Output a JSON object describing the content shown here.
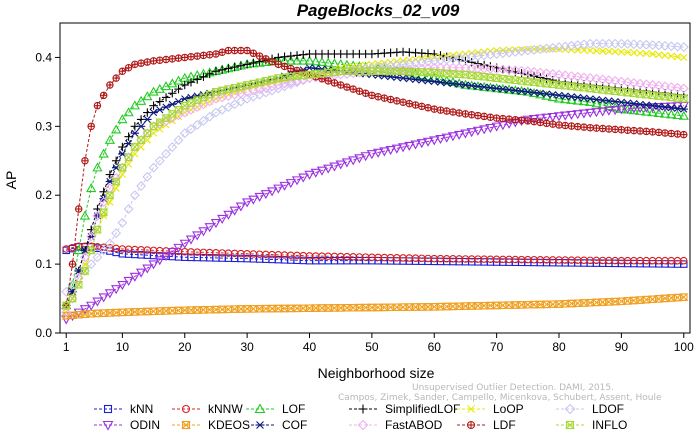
{
  "chart_data": {
    "type": "line",
    "title": "PageBlocks_02_v09",
    "xlabel": "Neighborhood size",
    "ylabel": "AP",
    "xlim": [
      0,
      101
    ],
    "ylim": [
      0,
      0.45
    ],
    "xticks": [
      1,
      10,
      20,
      30,
      40,
      50,
      60,
      70,
      80,
      90,
      100
    ],
    "yticks": [
      0.0,
      0.1,
      0.2,
      0.3,
      0.4
    ],
    "ytick_labels": [
      "0.0",
      "0.1",
      "0.2",
      "0.3",
      "0.4"
    ],
    "grid": false,
    "legend_position": "bottom",
    "series": [
      {
        "name": "kNN",
        "color": "#1f1fd6",
        "marker": "square",
        "x": [
          1,
          3,
          5,
          10,
          20,
          30,
          40,
          50,
          60,
          70,
          80,
          90,
          100
        ],
        "values": [
          0.12,
          0.125,
          0.125,
          0.115,
          0.11,
          0.108,
          0.105,
          0.105,
          0.104,
          0.103,
          0.102,
          0.101,
          0.1
        ]
      },
      {
        "name": "kNNW",
        "color": "#d62020",
        "marker": "circle",
        "x": [
          1,
          3,
          5,
          10,
          20,
          30,
          40,
          50,
          60,
          70,
          80,
          90,
          100
        ],
        "values": [
          0.122,
          0.126,
          0.126,
          0.122,
          0.118,
          0.115,
          0.112,
          0.11,
          0.108,
          0.107,
          0.106,
          0.105,
          0.105
        ]
      },
      {
        "name": "LOF",
        "color": "#22cc22",
        "marker": "triangle-up",
        "x": [
          1,
          2,
          3,
          4,
          5,
          6,
          8,
          10,
          12,
          15,
          20,
          25,
          30,
          35,
          40,
          45,
          50,
          55,
          60,
          65,
          70,
          75,
          80,
          85,
          90,
          95,
          100
        ],
        "values": [
          0.04,
          0.07,
          0.12,
          0.17,
          0.21,
          0.24,
          0.28,
          0.31,
          0.33,
          0.35,
          0.37,
          0.38,
          0.39,
          0.395,
          0.395,
          0.39,
          0.385,
          0.38,
          0.37,
          0.36,
          0.355,
          0.35,
          0.34,
          0.335,
          0.325,
          0.32,
          0.315
        ]
      },
      {
        "name": "SimplifiedLOF",
        "color": "#000000",
        "marker": "plus",
        "x": [
          1,
          2,
          3,
          4,
          5,
          6,
          8,
          10,
          12,
          15,
          20,
          25,
          30,
          35,
          40,
          45,
          50,
          55,
          60,
          65,
          70,
          75,
          80,
          85,
          90,
          95,
          100
        ],
        "values": [
          0.04,
          0.06,
          0.09,
          0.12,
          0.15,
          0.18,
          0.23,
          0.27,
          0.3,
          0.33,
          0.36,
          0.38,
          0.39,
          0.4,
          0.405,
          0.405,
          0.405,
          0.408,
          0.405,
          0.395,
          0.385,
          0.375,
          0.365,
          0.36,
          0.355,
          0.35,
          0.345
        ]
      },
      {
        "name": "LoOP",
        "color": "#e8e800",
        "marker": "x",
        "x": [
          1,
          2,
          3,
          4,
          5,
          6,
          8,
          10,
          12,
          15,
          20,
          25,
          30,
          35,
          40,
          45,
          50,
          55,
          60,
          65,
          70,
          75,
          80,
          85,
          90,
          95,
          100
        ],
        "values": [
          0.03,
          0.05,
          0.07,
          0.1,
          0.12,
          0.15,
          0.19,
          0.23,
          0.26,
          0.29,
          0.32,
          0.34,
          0.355,
          0.365,
          0.375,
          0.385,
          0.39,
          0.395,
          0.4,
          0.405,
          0.41,
          0.412,
          0.412,
          0.41,
          0.408,
          0.405,
          0.4
        ]
      },
      {
        "name": "LDOF",
        "color": "#c8c8f0",
        "marker": "diamond",
        "x": [
          1,
          2,
          3,
          4,
          5,
          6,
          8,
          10,
          12,
          15,
          20,
          25,
          30,
          35,
          40,
          45,
          50,
          55,
          60,
          65,
          70,
          75,
          80,
          85,
          90,
          95,
          100
        ],
        "values": [
          0.06,
          0.07,
          0.08,
          0.09,
          0.1,
          0.11,
          0.13,
          0.16,
          0.2,
          0.24,
          0.29,
          0.32,
          0.34,
          0.355,
          0.37,
          0.38,
          0.385,
          0.39,
          0.395,
          0.4,
          0.405,
          0.41,
          0.415,
          0.42,
          0.42,
          0.418,
          0.415
        ]
      },
      {
        "name": "ODIN",
        "color": "#9b30e0",
        "marker": "triangle-down",
        "x": [
          1,
          2,
          3,
          5,
          10,
          15,
          20,
          25,
          30,
          35,
          40,
          45,
          50,
          55,
          60,
          65,
          70,
          75,
          80,
          85,
          90,
          95,
          100
        ],
        "values": [
          0.02,
          0.025,
          0.03,
          0.04,
          0.07,
          0.1,
          0.13,
          0.16,
          0.19,
          0.21,
          0.23,
          0.245,
          0.26,
          0.27,
          0.28,
          0.29,
          0.3,
          0.31,
          0.315,
          0.32,
          0.325,
          0.328,
          0.33
        ]
      },
      {
        "name": "KDEOS",
        "color": "#f0a020",
        "marker": "hourglass-square",
        "x": [
          1,
          5,
          10,
          20,
          30,
          40,
          50,
          60,
          70,
          80,
          90,
          100
        ],
        "values": [
          0.025,
          0.028,
          0.03,
          0.033,
          0.035,
          0.036,
          0.037,
          0.038,
          0.04,
          0.042,
          0.046,
          0.052
        ]
      },
      {
        "name": "COF",
        "color": "#0a1a7a",
        "marker": "asterisk",
        "x": [
          1,
          2,
          3,
          4,
          5,
          6,
          8,
          10,
          12,
          15,
          20,
          25,
          30,
          35,
          40,
          45,
          50,
          55,
          60,
          65,
          70,
          75,
          80,
          85,
          90,
          95,
          100
        ],
        "values": [
          0.04,
          0.06,
          0.09,
          0.12,
          0.14,
          0.17,
          0.22,
          0.26,
          0.29,
          0.32,
          0.34,
          0.35,
          0.36,
          0.37,
          0.385,
          0.38,
          0.375,
          0.37,
          0.365,
          0.36,
          0.355,
          0.35,
          0.345,
          0.34,
          0.335,
          0.33,
          0.325
        ]
      },
      {
        "name": "FastABOD",
        "color": "#f0b0f0",
        "marker": "diamond",
        "x": [
          1,
          2,
          3,
          4,
          5,
          6,
          8,
          10,
          12,
          15,
          20,
          25,
          30,
          35,
          40,
          45,
          50,
          55,
          60,
          65,
          70,
          75,
          80,
          85,
          90,
          95,
          100
        ],
        "values": [
          0.03,
          0.05,
          0.08,
          0.11,
          0.14,
          0.17,
          0.21,
          0.24,
          0.27,
          0.3,
          0.32,
          0.34,
          0.35,
          0.36,
          0.37,
          0.375,
          0.38,
          0.382,
          0.385,
          0.385,
          0.383,
          0.38,
          0.375,
          0.37,
          0.365,
          0.36,
          0.355
        ]
      },
      {
        "name": "LDF",
        "color": "#b01818",
        "marker": "circle-plus",
        "x": [
          1,
          2,
          3,
          4,
          5,
          6,
          8,
          10,
          12,
          15,
          20,
          25,
          27,
          30,
          35,
          40,
          45,
          50,
          55,
          60,
          65,
          70,
          75,
          80,
          85,
          90,
          95,
          100
        ],
        "values": [
          0.04,
          0.1,
          0.18,
          0.25,
          0.3,
          0.33,
          0.36,
          0.38,
          0.39,
          0.395,
          0.4,
          0.405,
          0.41,
          0.41,
          0.39,
          0.375,
          0.36,
          0.345,
          0.335,
          0.325,
          0.318,
          0.312,
          0.308,
          0.302,
          0.298,
          0.295,
          0.292,
          0.288
        ]
      },
      {
        "name": "INFLO",
        "color": "#a8d838",
        "marker": "hourglass-square",
        "x": [
          1,
          2,
          3,
          4,
          5,
          6,
          8,
          10,
          12,
          15,
          20,
          25,
          30,
          35,
          40,
          45,
          50,
          55,
          60,
          65,
          70,
          75,
          80,
          85,
          90,
          95,
          100
        ],
        "values": [
          0.04,
          0.05,
          0.07,
          0.09,
          0.12,
          0.15,
          0.2,
          0.24,
          0.27,
          0.3,
          0.33,
          0.35,
          0.36,
          0.37,
          0.375,
          0.38,
          0.38,
          0.38,
          0.378,
          0.375,
          0.37,
          0.365,
          0.36,
          0.355,
          0.35,
          0.345,
          0.34
        ]
      }
    ],
    "legend_rows": [
      [
        "kNN",
        "kNNW",
        "LOF",
        "SimplifiedLOF",
        "LoOP",
        "LDOF"
      ],
      [
        "ODIN",
        "KDEOS",
        "COF",
        "FastABOD",
        "LDF",
        "INFLO"
      ]
    ],
    "annotation": {
      "line1": "Unsupervised Outlier Detection. DAMI, 2015.",
      "line2": "Campos, Zimek, Sander, Campello, Micenkova, Schubert, Assent, Houle"
    }
  }
}
